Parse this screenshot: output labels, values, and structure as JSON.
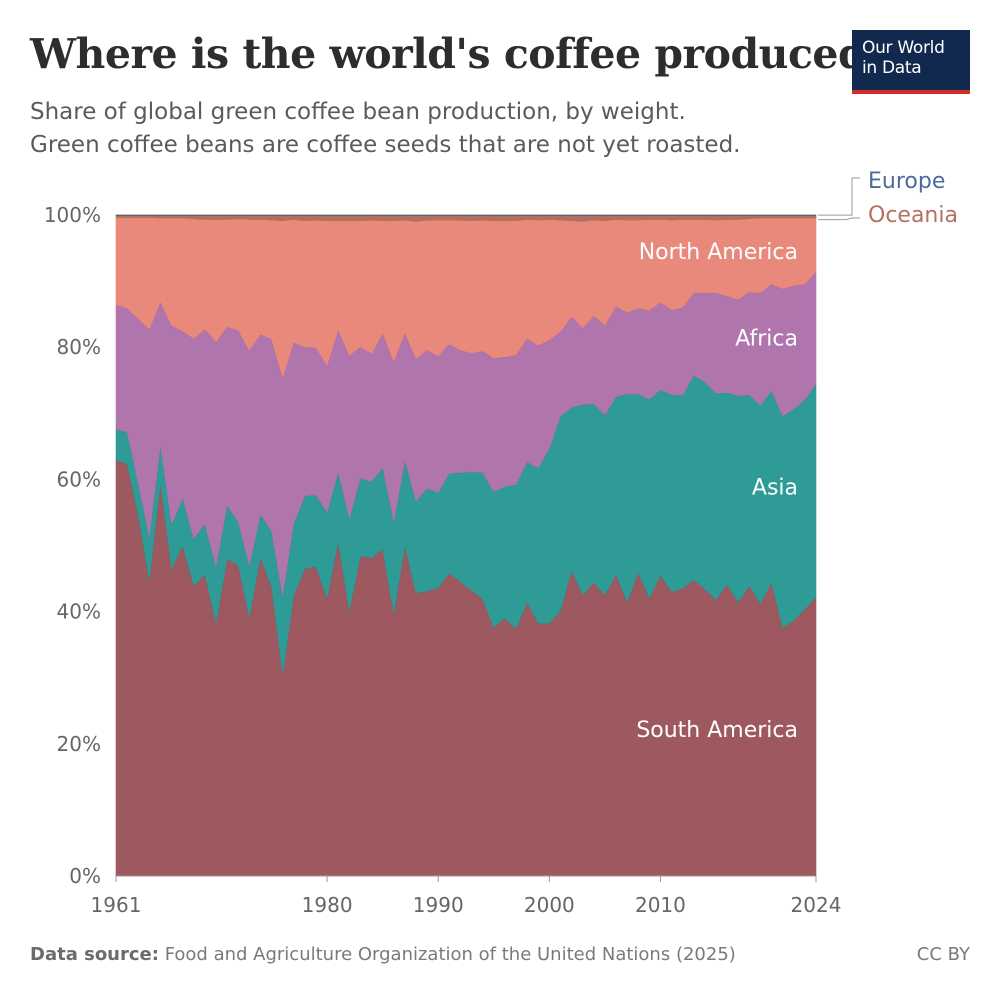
{
  "header": {
    "title": "Where is the world's coffee produced?",
    "subtitle_line1": "Share of global green coffee bean production, by weight.",
    "subtitle_line2": "Green coffee beans are coffee seeds that are not yet roasted."
  },
  "logo": {
    "line1": "Our World",
    "line2": "in Data"
  },
  "footer": {
    "source_label": "Data source:",
    "source_text": "Food and Agriculture Organization of the United Nations (2025)",
    "license": "CC BY"
  },
  "chart_data": {
    "type": "area",
    "stacked": true,
    "x": [
      1961,
      1962,
      1963,
      1964,
      1965,
      1966,
      1967,
      1968,
      1969,
      1970,
      1971,
      1972,
      1973,
      1974,
      1975,
      1976,
      1977,
      1978,
      1979,
      1980,
      1981,
      1982,
      1983,
      1984,
      1985,
      1986,
      1987,
      1988,
      1989,
      1990,
      1991,
      1992,
      1993,
      1994,
      1995,
      1996,
      1997,
      1998,
      1999,
      2000,
      2001,
      2002,
      2003,
      2004,
      2005,
      2006,
      2007,
      2008,
      2009,
      2010,
      2011,
      2012,
      2013,
      2014,
      2015,
      2016,
      2017,
      2018,
      2019,
      2020,
      2021,
      2022,
      2023,
      2024
    ],
    "x_ticks": [
      {
        "value": 1961,
        "label": "1961"
      },
      {
        "value": 1980,
        "label": "1980"
      },
      {
        "value": 1990,
        "label": "1990"
      },
      {
        "value": 2000,
        "label": "2000"
      },
      {
        "value": 2010,
        "label": "2010"
      },
      {
        "value": 2024,
        "label": "2024"
      }
    ],
    "y_ticks": [
      {
        "value": 0,
        "label": "0%"
      },
      {
        "value": 20,
        "label": "20%"
      },
      {
        "value": 40,
        "label": "40%"
      },
      {
        "value": 60,
        "label": "60%"
      },
      {
        "value": 80,
        "label": "80%"
      },
      {
        "value": 100,
        "label": "100%"
      }
    ],
    "ylim": [
      0,
      100
    ],
    "xlim": [
      1961,
      2024
    ],
    "grid": "horizontal dashed",
    "series": [
      {
        "name": "South America",
        "color": "#9e5860",
        "values": [
          62.8,
          62.2,
          54.5,
          44.6,
          59.5,
          46.4,
          49.9,
          43.9,
          45.6,
          38.3,
          47.9,
          47.0,
          39.1,
          48.2,
          43.7,
          30.5,
          42.4,
          46.5,
          46.8,
          42.0,
          50.6,
          40.1,
          48.4,
          48.1,
          49.4,
          39.7,
          49.9,
          42.8,
          43.1,
          43.6,
          45.8,
          44.5,
          43.2,
          41.9,
          37.6,
          39.0,
          37.4,
          41.4,
          38.2,
          38.2,
          40.1,
          46.2,
          42.5,
          44.4,
          42.5,
          45.6,
          41.5,
          45.9,
          42.0,
          45.5,
          43.0,
          43.5,
          44.8,
          43.4,
          41.8,
          44.1,
          41.4,
          44.0,
          41.2,
          44.4,
          37.6,
          38.7,
          40.4,
          42.2
        ]
      },
      {
        "name": "Asia",
        "color": "#2e9b97",
        "values": [
          4.7,
          4.8,
          4.8,
          6.6,
          5.6,
          6.7,
          7.2,
          7.1,
          7.6,
          8.5,
          8.1,
          6.6,
          7.8,
          6.5,
          8.4,
          11.8,
          11.0,
          11.0,
          10.8,
          13.0,
          10.5,
          14.0,
          11.8,
          11.5,
          12.4,
          13.9,
          13.0,
          13.9,
          15.5,
          14.4,
          15.1,
          16.5,
          17.9,
          19.1,
          20.5,
          19.9,
          21.8,
          21.2,
          23.5,
          26.4,
          29.4,
          24.7,
          28.8,
          27.0,
          27.2,
          26.9,
          31.4,
          27.0,
          30.1,
          28.0,
          29.8,
          29.2,
          30.9,
          31.3,
          31.2,
          29.0,
          31.2,
          28.9,
          30.0,
          29.0,
          32.0,
          32.0,
          31.7,
          32.3
        ]
      },
      {
        "name": "Africa",
        "color": "#b175ae",
        "values": [
          18.8,
          18.7,
          24.8,
          31.3,
          21.6,
          30.0,
          25.2,
          30.2,
          29.4,
          34.0,
          27.0,
          28.9,
          32.5,
          27.2,
          29.0,
          33.0,
          27.3,
          22.5,
          22.3,
          22.2,
          21.5,
          24.6,
          19.8,
          19.4,
          20.3,
          24.2,
          19.2,
          21.5,
          21.0,
          20.6,
          19.6,
          18.5,
          18.0,
          18.4,
          20.2,
          19.6,
          19.6,
          18.7,
          18.5,
          16.4,
          12.8,
          13.7,
          11.6,
          13.3,
          13.6,
          13.7,
          12.3,
          13.0,
          13.4,
          13.3,
          12.8,
          13.3,
          12.5,
          13.5,
          15.2,
          14.6,
          14.6,
          15.6,
          17.0,
          16.1,
          19.3,
          18.7,
          17.5,
          17.0
        ]
      },
      {
        "name": "North America",
        "color": "#e8897b",
        "values": [
          13.2,
          13.7,
          15.3,
          16.9,
          12.7,
          16.2,
          17.1,
          18.1,
          16.6,
          18.5,
          16.2,
          16.9,
          19.8,
          17.4,
          18.0,
          23.7,
          18.6,
          19.1,
          19.3,
          21.9,
          16.5,
          20.4,
          19.1,
          20.2,
          17.0,
          21.3,
          17.1,
          20.8,
          19.6,
          20.6,
          18.7,
          19.7,
          20.0,
          19.8,
          20.8,
          20.6,
          20.3,
          18.0,
          19.0,
          18.2,
          16.9,
          14.5,
          16.1,
          14.5,
          15.8,
          13.1,
          14.0,
          13.3,
          13.8,
          12.5,
          13.6,
          13.3,
          11.1,
          11.1,
          11.0,
          11.6,
          12.1,
          11.1,
          11.3,
          10.0,
          10.7,
          10.2,
          10.0,
          8.1
        ]
      },
      {
        "name": "Oceania",
        "color": "#b4705e",
        "values": [
          0.3,
          0.3,
          0.3,
          0.3,
          0.4,
          0.4,
          0.4,
          0.5,
          0.6,
          0.6,
          0.6,
          0.5,
          0.6,
          0.6,
          0.7,
          0.8,
          0.6,
          0.8,
          0.7,
          0.8,
          0.8,
          0.8,
          0.8,
          0.7,
          0.8,
          0.8,
          0.7,
          0.9,
          0.7,
          0.7,
          0.7,
          0.7,
          0.8,
          0.7,
          0.8,
          0.8,
          0.8,
          0.6,
          0.7,
          0.6,
          0.7,
          0.8,
          0.9,
          0.7,
          0.8,
          0.6,
          0.7,
          0.7,
          0.6,
          0.6,
          0.7,
          0.6,
          0.6,
          0.6,
          0.7,
          0.6,
          0.6,
          0.5,
          0.4,
          0.4,
          0.4,
          0.4,
          0.4,
          0.4
        ]
      },
      {
        "name": "Europe",
        "color": "#4c6a9c",
        "values": [
          0.05,
          0.05,
          0.05,
          0.05,
          0.05,
          0.05,
          0.05,
          0.05,
          0.05,
          0.05,
          0.05,
          0.05,
          0.05,
          0.05,
          0.05,
          0.05,
          0.05,
          0.05,
          0.05,
          0.05,
          0.05,
          0.05,
          0.05,
          0.05,
          0.05,
          0.05,
          0.05,
          0.05,
          0.05,
          0.05,
          0.05,
          0.05,
          0.05,
          0.05,
          0.05,
          0.05,
          0.05,
          0.05,
          0.05,
          0.05,
          0.05,
          0.05,
          0.05,
          0.05,
          0.05,
          0.05,
          0.05,
          0.05,
          0.05,
          0.05,
          0.05,
          0.05,
          0.05,
          0.05,
          0.05,
          0.05,
          0.05,
          0.05,
          0.05,
          0.05,
          0.05,
          0.05,
          0.05,
          0.05
        ]
      }
    ],
    "legend": [
      {
        "name": "Europe",
        "color": "#4c6a9c",
        "placement": "right-outside"
      },
      {
        "name": "Oceania",
        "color": "#b4705e",
        "placement": "right-outside"
      }
    ],
    "inline_labels": [
      {
        "name": "North America",
        "color": "#ffffff"
      },
      {
        "name": "Africa",
        "color": "#ffffff"
      },
      {
        "name": "Asia",
        "color": "#ffffff"
      },
      {
        "name": "South America",
        "color": "#ffffff"
      }
    ]
  }
}
